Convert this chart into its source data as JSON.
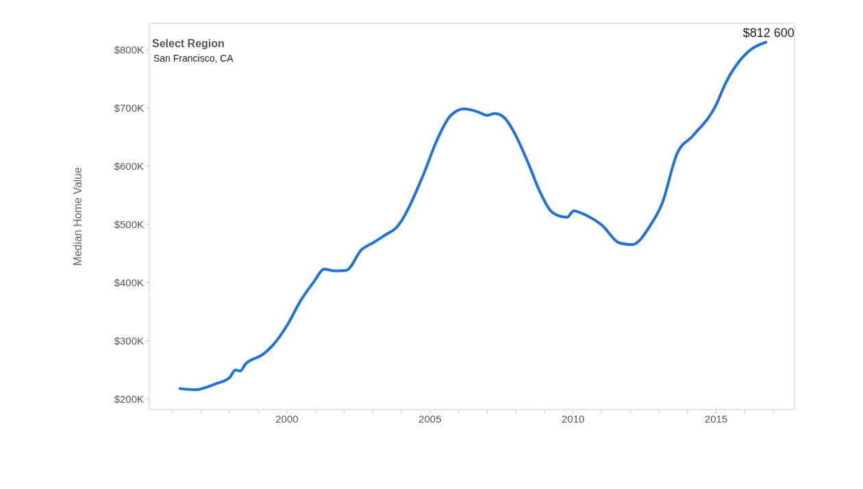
{
  "chart_data": {
    "type": "line",
    "ylabel": "Median Home Value",
    "annotations": [
      "Select Region",
      "San Francisco, CA"
    ],
    "x": [
      1996.26,
      1996.8,
      1997.5,
      1998.0,
      1998.2,
      1998.36,
      1998.55,
      1999.17,
      1999.5,
      2000.0,
      2000.48,
      2000.95,
      2001.3,
      2001.67,
      2002.07,
      2002.62,
      2003.0,
      2003.45,
      2003.8,
      2004.76,
      2005.24,
      2005.71,
      2006.19,
      2006.67,
      2007.0,
      2007.26,
      2007.62,
      2007.87,
      2008.45,
      2008.83,
      2009.31,
      2009.79,
      2010.02,
      2010.48,
      2011.0,
      2011.62,
      2012.07,
      2012.71,
      2013.1,
      2013.64,
      2014.19,
      2015.0,
      2015.31,
      2016.14,
      2016.74
    ],
    "series": [
      {
        "color": "#1a73e0",
        "values": [
          218000,
          216000,
          226000,
          237000,
          250000,
          248000,
          260000,
          277000,
          292000,
          326000,
          369000,
          402000,
          423000,
          420000,
          421000,
          457000,
          468000,
          482000,
          493000,
          584000,
          644000,
          686000,
          698000,
          693000,
          687000,
          690000,
          682000,
          664000,
          603000,
          557000,
          519000,
          512000,
          523000,
          515000,
          499000,
          468000,
          465000,
          499000,
          534000,
          622000,
          652000,
          705000,
          740000,
          797000,
          812600
        ],
        "value_labels": [
          null,
          null,
          null,
          null,
          null,
          null,
          null,
          null,
          null,
          null,
          null,
          null,
          null,
          null,
          null,
          null,
          null,
          null,
          null,
          null,
          null,
          null,
          null,
          null,
          null,
          null,
          null,
          null,
          null,
          null,
          null,
          null,
          null,
          null,
          null,
          null,
          null,
          null,
          null,
          null,
          null,
          null,
          null,
          null,
          "$812 600"
        ]
      }
    ],
    "xlim": [
      1995.19,
      2017.74
    ],
    "xticks": [
      {
        "value": 1996,
        "label": null
      },
      {
        "value": 1997,
        "label": null
      },
      {
        "value": 1998,
        "label": null
      },
      {
        "value": 1999,
        "label": null
      },
      2000,
      {
        "value": 2001,
        "label": null
      },
      {
        "value": 2002,
        "label": null
      },
      {
        "value": 2003,
        "label": null
      },
      {
        "value": 2004,
        "label": null
      },
      2005,
      {
        "value": 2006,
        "label": null
      },
      {
        "value": 2007,
        "label": null
      },
      {
        "value": 2008,
        "label": null
      },
      {
        "value": 2009,
        "label": null
      },
      2010,
      {
        "value": 2011,
        "label": null
      },
      {
        "value": 2012,
        "label": null
      },
      {
        "value": 2013,
        "label": null
      },
      {
        "value": 2014,
        "label": null
      },
      2015,
      {
        "value": 2016,
        "label": null
      },
      {
        "value": 2017,
        "label": null
      }
    ],
    "ylim": [
      182000,
      845000
    ],
    "yticks": [
      {
        "value": 200000,
        "label": "$200K"
      },
      {
        "value": 300000,
        "label": "$300K"
      },
      {
        "value": 400000,
        "label": "$400K"
      },
      {
        "value": 500000,
        "label": "$500K"
      },
      {
        "value": 600000,
        "label": "$600K"
      },
      {
        "value": 700000,
        "label": "$700K"
      },
      {
        "value": 800000,
        "label": "$800K"
      }
    ],
    "grid": false,
    "legend": false,
    "marker": "none",
    "line_style": "solid"
  }
}
